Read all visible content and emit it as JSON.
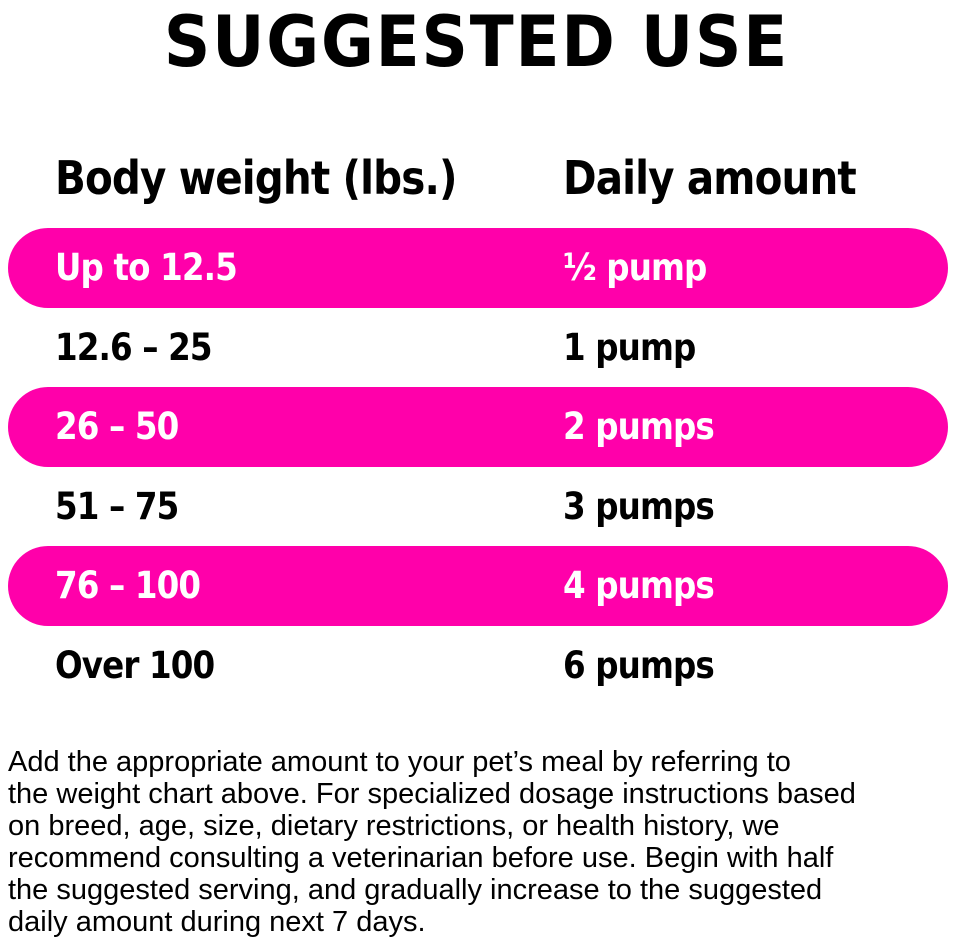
{
  "title": "SUGGESTED USE",
  "headers": {
    "weight": "Body weight (lbs.)",
    "amount": "Daily amount"
  },
  "accent_color": "#ff00aa",
  "rows": [
    {
      "weight": "Up to 12.5",
      "amount": "½ pump",
      "highlight": true
    },
    {
      "weight": "12.6 – 25",
      "amount": "1 pump",
      "highlight": false
    },
    {
      "weight": "26 – 50",
      "amount": "2 pumps",
      "highlight": true
    },
    {
      "weight": "51 – 75",
      "amount": "3 pumps",
      "highlight": false
    },
    {
      "weight": "76 – 100",
      "amount": "4 pumps",
      "highlight": true
    },
    {
      "weight": "Over 100",
      "amount": "6 pumps",
      "highlight": false
    }
  ],
  "paragraph": [
    "Add the appropriate amount to your pet’s meal by referring to",
    "the weight chart above. For specialized dosage instructions based",
    "on breed, age, size, dietary restrictions, or health history, we",
    "recommend consulting a veterinarian before use. Begin with half",
    "the suggested serving, and gradually increase to the suggested",
    "daily amount during next 7 days."
  ]
}
